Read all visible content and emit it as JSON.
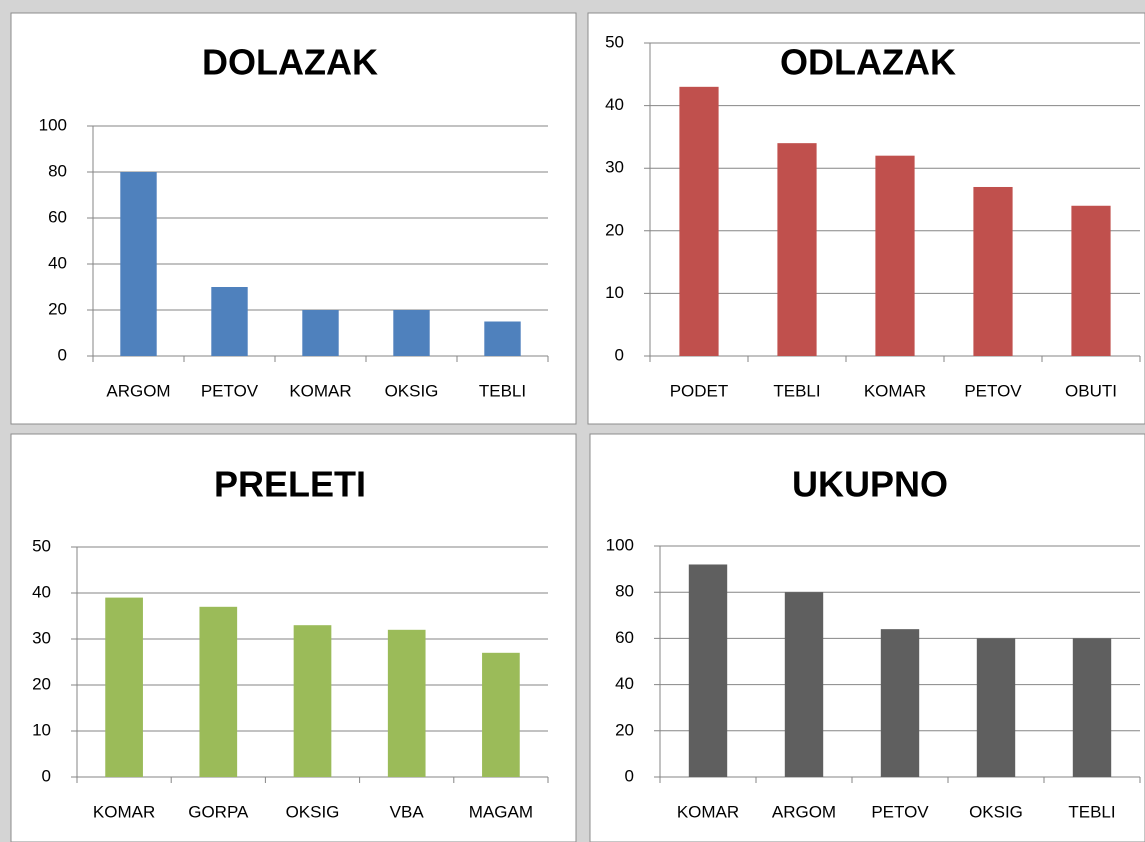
{
  "chart_data": [
    {
      "type": "bar",
      "title": "DOLAZAK",
      "categories": [
        "ARGOM",
        "PETOV",
        "KOMAR",
        "OKSIG",
        "TEBLI"
      ],
      "values": [
        80,
        30,
        20,
        20,
        15
      ],
      "color": "#4f81bd",
      "ylim": [
        0,
        100
      ],
      "yticks": [
        0,
        20,
        40,
        60,
        80,
        100
      ],
      "grid": true
    },
    {
      "type": "bar",
      "title": "ODLAZAK",
      "categories": [
        "PODET",
        "TEBLI",
        "KOMAR",
        "PETOV",
        "OBUTI"
      ],
      "values": [
        43,
        34,
        32,
        27,
        24
      ],
      "color": "#c0504d",
      "ylim": [
        0,
        50
      ],
      "yticks": [
        0,
        10,
        20,
        30,
        40,
        50
      ],
      "grid": true
    },
    {
      "type": "bar",
      "title": "PRELETI",
      "categories": [
        "KOMAR",
        "GORPA",
        "OKSIG",
        "VBA",
        "MAGAM"
      ],
      "values": [
        39,
        37,
        33,
        32,
        27
      ],
      "color": "#9bbb59",
      "ylim": [
        0,
        50
      ],
      "yticks": [
        0,
        10,
        20,
        30,
        40,
        50
      ],
      "grid": true
    },
    {
      "type": "bar",
      "title": "UKUPNO",
      "categories": [
        "KOMAR",
        "ARGOM",
        "PETOV",
        "OKSIG",
        "TEBLI"
      ],
      "values": [
        92,
        80,
        64,
        60,
        60
      ],
      "color": "#5f5f5f",
      "ylim": [
        0,
        100
      ],
      "yticks": [
        0,
        20,
        40,
        60,
        80,
        100
      ],
      "grid": true
    }
  ]
}
